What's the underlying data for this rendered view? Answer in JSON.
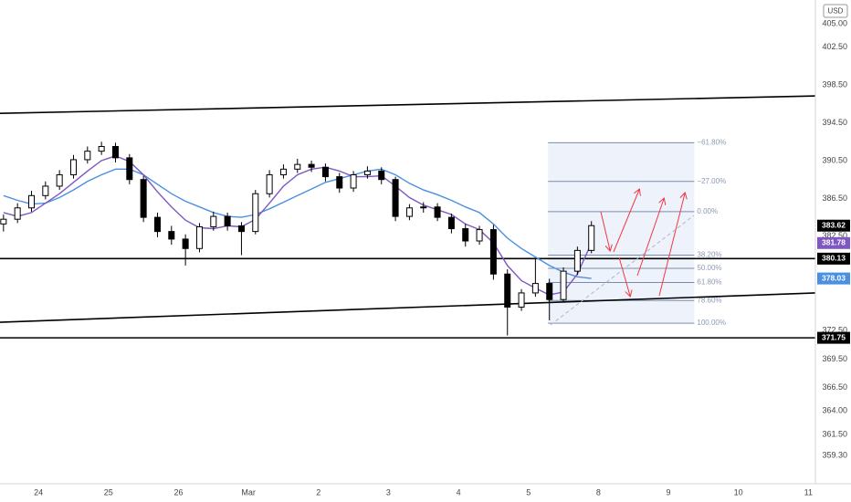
{
  "chart_data": {
    "type": "candlestick",
    "currency": "USD",
    "xlim": [
      -0.55,
      11.1
    ],
    "ylim": [
      356.5,
      407.5
    ],
    "xticks": [
      {
        "value": 0,
        "label": "24"
      },
      {
        "value": 1,
        "label": "25"
      },
      {
        "value": 2,
        "label": "26"
      },
      {
        "value": 3,
        "label": "Mar"
      },
      {
        "value": 4,
        "label": "2"
      },
      {
        "value": 5,
        "label": "3"
      },
      {
        "value": 6,
        "label": "4"
      },
      {
        "value": 7,
        "label": "5"
      },
      {
        "value": 8,
        "label": "8"
      },
      {
        "value": 9,
        "label": "9"
      },
      {
        "value": 10,
        "label": "10"
      },
      {
        "value": 11,
        "label": "11"
      }
    ],
    "yticks": [
      {
        "value": 405,
        "label": "405.00"
      },
      {
        "value": 402.5,
        "label": "402.50"
      },
      {
        "value": 398.5,
        "label": "398.50"
      },
      {
        "value": 394.5,
        "label": "394.50"
      },
      {
        "value": 390.5,
        "label": "390.50"
      },
      {
        "value": 386.5,
        "label": "386.50"
      },
      {
        "value": 382.5,
        "label": "382.50"
      },
      {
        "value": 372.5,
        "label": "372.50"
      },
      {
        "value": 369.5,
        "label": "369.50"
      },
      {
        "value": 366.5,
        "label": "366.50"
      },
      {
        "value": 364,
        "label": "364.00"
      },
      {
        "value": 361.5,
        "label": "361.50"
      },
      {
        "value": 359.3,
        "label": "359.30"
      }
    ],
    "x": [
      -0.5,
      -0.3,
      -0.1,
      0.1,
      0.3,
      0.5,
      0.7,
      0.9,
      1.1,
      1.3,
      1.5,
      1.7,
      1.9,
      2.1,
      2.3,
      2.5,
      2.7,
      2.9,
      3.1,
      3.3,
      3.5,
      3.7,
      3.9,
      4.1,
      4.3,
      4.5,
      4.7,
      4.9,
      5.1,
      5.3,
      5.5,
      5.7,
      5.9,
      6.1,
      6.3,
      6.5,
      6.7,
      6.9,
      7.1,
      7.3,
      7.5,
      7.7,
      7.9
    ],
    "open": [
      383.8,
      384.3,
      385.5,
      386.8,
      387.8,
      389.0,
      390.6,
      391.5,
      392.0,
      390.8,
      388.5,
      384.5,
      383.0,
      382.2,
      381.2,
      383.5,
      384.6,
      383.6,
      383.0,
      387.0,
      389.0,
      389.6,
      390.1,
      389.8,
      388.8,
      387.6,
      389.0,
      389.4,
      388.5,
      384.6,
      385.5,
      385.6,
      384.5,
      383.3,
      382.0,
      383.2,
      378.5,
      375.0,
      376.5,
      377.5,
      375.8,
      378.8,
      381.0
    ],
    "high": [
      384.8,
      386.0,
      387.3,
      388.3,
      389.5,
      391.1,
      392.0,
      392.5,
      392.4,
      391.2,
      388.9,
      385.0,
      383.6,
      382.7,
      383.9,
      385.1,
      385.0,
      384.0,
      387.4,
      389.5,
      390.1,
      390.7,
      390.5,
      390.2,
      389.2,
      389.4,
      389.9,
      389.8,
      388.8,
      385.9,
      386.1,
      386.0,
      384.9,
      383.8,
      383.6,
      383.7,
      379.0,
      376.9,
      380.2,
      378.0,
      379.2,
      381.4,
      384.1
    ],
    "low": [
      383.0,
      383.9,
      385.1,
      386.4,
      387.4,
      388.6,
      390.2,
      391.1,
      390.3,
      388.0,
      384.0,
      382.4,
      381.6,
      379.4,
      380.8,
      383.1,
      383.1,
      380.5,
      382.7,
      386.6,
      388.6,
      389.2,
      389.3,
      388.3,
      387.1,
      387.2,
      388.6,
      388.0,
      384.1,
      384.2,
      385.0,
      384.1,
      382.8,
      381.4,
      381.6,
      377.9,
      372.0,
      374.6,
      376.1,
      373.6,
      375.5,
      378.4,
      380.7
    ],
    "close": [
      384.3,
      385.5,
      386.8,
      387.8,
      389.0,
      390.6,
      391.5,
      392.0,
      390.8,
      388.5,
      384.5,
      383.0,
      382.2,
      381.2,
      383.5,
      384.6,
      383.6,
      383.0,
      387.0,
      389.0,
      389.6,
      390.1,
      389.8,
      388.8,
      387.6,
      389.0,
      389.4,
      388.5,
      384.6,
      385.5,
      385.6,
      384.5,
      383.3,
      382.0,
      383.2,
      378.5,
      375.0,
      376.5,
      377.5,
      375.8,
      378.8,
      381.0,
      383.62
    ],
    "series": [
      {
        "color": "#4a90e2",
        "values": [
          386.8,
          386.3,
          385.9,
          386.0,
          386.6,
          387.4,
          388.3,
          389.0,
          389.6,
          389.6,
          389.0,
          388.0,
          387.0,
          386.2,
          385.6,
          385.0,
          384.6,
          384.5,
          384.8,
          385.4,
          386.1,
          386.8,
          387.5,
          388.2,
          388.6,
          389.0,
          389.4,
          389.6,
          389.0,
          388.1,
          387.4,
          386.9,
          386.3,
          385.6,
          385.0,
          383.8,
          382.3,
          381.2,
          380.3,
          379.4,
          378.7,
          378.2,
          378.03
        ]
      },
      {
        "color": "#7e57c2",
        "values": [
          385.0,
          384.6,
          385.0,
          386.0,
          387.0,
          388.2,
          389.4,
          390.5,
          391.0,
          390.4,
          389.0,
          387.2,
          385.6,
          384.2,
          383.4,
          383.3,
          383.6,
          383.5,
          384.3,
          386.0,
          387.8,
          389.0,
          389.6,
          389.8,
          389.4,
          388.8,
          388.8,
          388.9,
          387.8,
          386.6,
          385.8,
          385.3,
          384.8,
          383.8,
          383.2,
          381.8,
          379.4,
          377.8,
          377.0,
          376.3,
          376.6,
          378.5,
          381.78
        ]
      }
    ],
    "hlines": [
      380.13,
      371.75
    ],
    "trendlines": [
      {
        "x": [
          -0.55,
          11.1
        ],
        "y": [
          395.5,
          397.35
        ]
      },
      {
        "x": [
          -0.55,
          11.1
        ],
        "y": [
          373.4,
          376.5
        ]
      }
    ],
    "fib": {
      "x": [
        7.28,
        9.37
      ],
      "levels": [
        {
          "value": 392.4,
          "label": "−61.80%"
        },
        {
          "value": 388.3,
          "label": "−27.00%"
        },
        {
          "value": 385.1,
          "label": "0.00%"
        },
        {
          "value": 380.5,
          "label": "38.20%"
        },
        {
          "value": 379.1,
          "label": "50.00%"
        },
        {
          "value": 377.6,
          "label": "61.80%"
        },
        {
          "value": 375.7,
          "label": "78.60%"
        },
        {
          "value": 373.3,
          "label": "100.00%"
        }
      ]
    },
    "price_labels": [
      {
        "value": 383.62,
        "color": "#000000"
      },
      {
        "value": 381.78,
        "color": "#7e57c2"
      },
      {
        "value": 380.13,
        "color": "#000000"
      },
      {
        "value": 378.03,
        "color": "#4a90e2"
      },
      {
        "value": 371.75,
        "color": "#000000"
      }
    ]
  }
}
